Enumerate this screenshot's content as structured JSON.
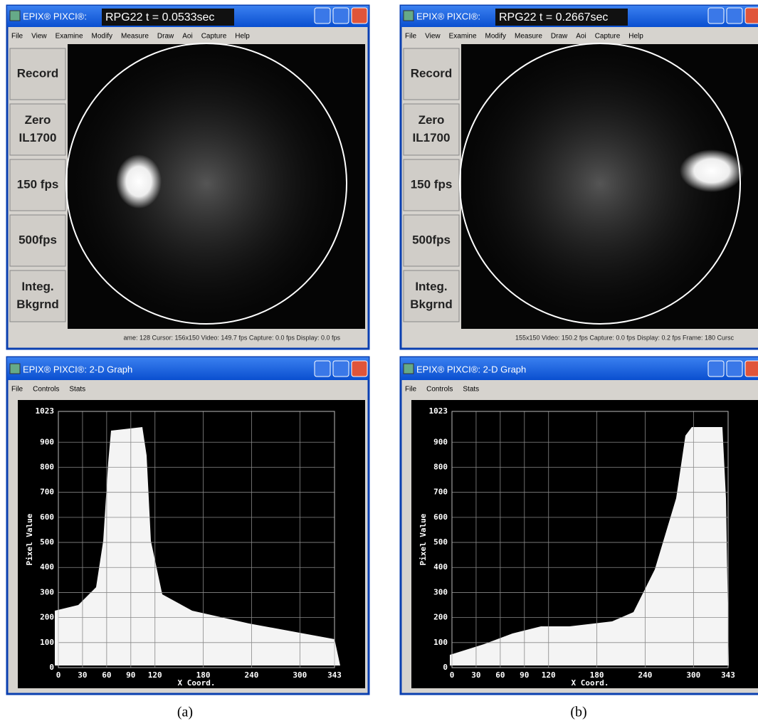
{
  "panels": [
    {
      "camera_window": {
        "app_title": "EPIX® PIXCI®:",
        "image_title": "RPG22   t = 0.0533sec",
        "menu": [
          "File",
          "View",
          "Examine",
          "Modify",
          "Measure",
          "Draw",
          "Aoi",
          "Capture",
          "Help"
        ],
        "buttons": [
          [
            "Record"
          ],
          [
            "Zero",
            "IL1700"
          ],
          [
            "150 fps"
          ],
          [
            "500fps"
          ],
          [
            "Integ.",
            "Bkgrnd"
          ]
        ],
        "status": "ame: 128  Cursor: 156x150  Video: 149.7 fps  Capture: 0.0 fps  Display: 0.0 fps"
      },
      "graph_window": {
        "title": "EPIX® PIXCI®: 2-D Graph",
        "menu": [
          "File",
          "Controls",
          "Stats"
        ],
        "x_label": "X Coord.",
        "y_label": "Pixel Value",
        "xticks": [
          0,
          30,
          60,
          90,
          120,
          180,
          240,
          300,
          343
        ],
        "yticks": [
          0,
          100,
          200,
          300,
          400,
          500,
          600,
          700,
          800,
          900,
          1023
        ]
      },
      "caption": "(a)"
    },
    {
      "camera_window": {
        "app_title": "EPIX® PIXCI®:",
        "image_title": "RPG22   t = 0.2667sec",
        "menu": [
          "File",
          "View",
          "Examine",
          "Modify",
          "Measure",
          "Draw",
          "Aoi",
          "Capture",
          "Help"
        ],
        "buttons": [
          [
            "Record"
          ],
          [
            "Zero",
            "IL1700"
          ],
          [
            "150 fps"
          ],
          [
            "500fps"
          ],
          [
            "Integ.",
            "Bkgrnd"
          ]
        ],
        "status": "155x150  Video: 150.2 fps  Capture: 0.0 fps  Display: 0.2 fps  Frame: 180  Cursc"
      },
      "graph_window": {
        "title": "EPIX® PIXCI®: 2-D Graph",
        "menu": [
          "File",
          "Controls",
          "Stats"
        ],
        "x_label": "X Coord.",
        "y_label": "Pixel Value",
        "xticks": [
          0,
          30,
          60,
          90,
          120,
          180,
          240,
          300,
          343
        ],
        "yticks": [
          0,
          100,
          200,
          300,
          400,
          500,
          600,
          700,
          800,
          900,
          1023
        ]
      },
      "caption": "(b)"
    }
  ]
}
